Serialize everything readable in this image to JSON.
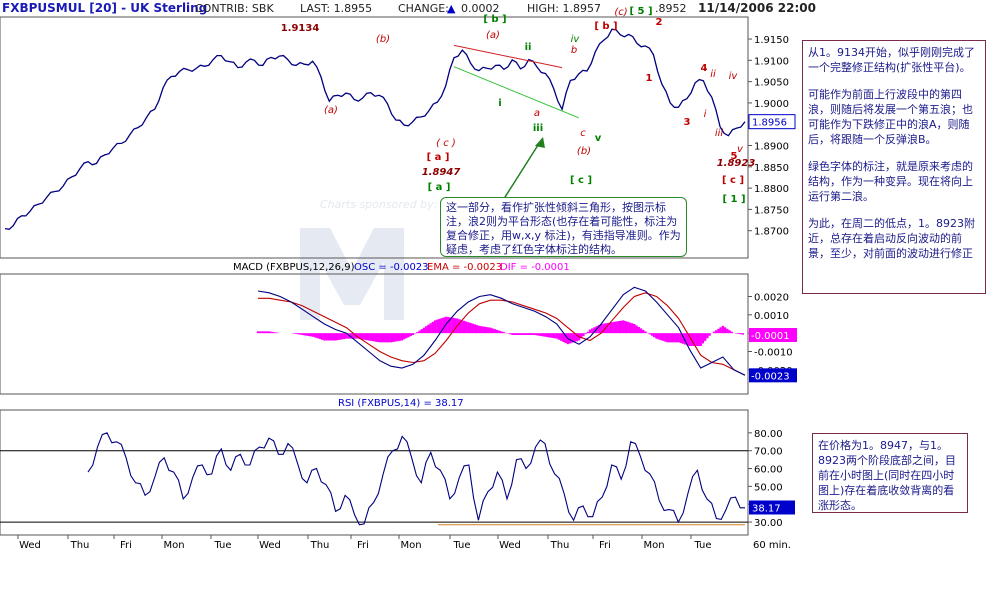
{
  "header": {
    "symbol": "FXBPUSMUL [20] - UK Sterling",
    "contrib": "CONTRIB: SBK",
    "last": "LAST: 1.8955",
    "change_label": "CHANGE:",
    "change_value": "0.0002",
    "high": "HIGH: 1.8957",
    "last_price_box": ".8952",
    "datetime": "11/14/2006 22:00"
  },
  "panes": {
    "macd_title": "MACD (FXBPUS,12,26,9)",
    "macd_osc": "OSC = -0.0023",
    "macd_ema": "EMA = -0.0023",
    "macd_dif": "DIF = -0.0001",
    "rsi_title": "RSI (FXBPUS,14) = 38.17",
    "sponsor": "Charts sponsored by:"
  },
  "chart_data": [
    {
      "type": "line",
      "pane": "price",
      "ylim": [
        1.865,
        1.919
      ],
      "y_ticks": [
        "1.9150",
        "1.9100",
        "1.9050",
        "1.9000",
        "1.8950",
        "1.8900",
        "1.8850",
        "1.8800",
        "1.8750",
        "1.8700"
      ],
      "y_tick_values": [
        1.915,
        1.91,
        1.905,
        1.9,
        1.895,
        1.89,
        1.885,
        1.88,
        1.875,
        1.87
      ],
      "last_value_label": "1.8956",
      "last_value": 1.8956,
      "x_ticks": [
        "Wed",
        "Thu",
        "Fri",
        "Mon",
        "Tue",
        "Wed",
        "Thu",
        "Fri",
        "Mon",
        "Tue",
        "Wed",
        "Thu",
        "Fri",
        "Mon",
        "Tue"
      ],
      "x_unit": "60 min.",
      "series": [
        {
          "values": [
            1.8705,
            1.8712,
            1.8735,
            1.8745,
            1.8762,
            1.8778,
            1.8792,
            1.8805,
            1.8826,
            1.8845,
            1.8862,
            1.8858,
            1.8878,
            1.8894,
            1.8905,
            1.8925,
            1.8942,
            1.8965,
            1.8985,
            1.9035,
            1.9062,
            1.9074,
            1.9078,
            1.9081,
            1.9086,
            1.9101,
            1.9111,
            1.9097,
            1.9083,
            1.9096,
            1.91,
            1.9088,
            1.9107,
            1.911,
            1.9102,
            1.9088,
            1.9091,
            1.9098,
            1.9061,
            1.9004,
            1.9018,
            1.9023,
            1.9008,
            1.9011,
            1.9024,
            1.9018,
            1.8998,
            1.896,
            1.8948,
            1.8955,
            1.8967,
            1.8982,
            1.9002,
            1.904,
            1.9106,
            1.9124,
            1.9093,
            1.9076,
            1.9081,
            1.9088,
            1.9079,
            1.9101,
            1.908,
            1.9102,
            1.9084,
            1.9069,
            1.9033,
            1.8985,
            1.9053,
            1.9068,
            1.9075,
            1.912,
            1.9147,
            1.9173,
            1.916,
            1.9161,
            1.914,
            1.9134,
            1.9113,
            1.9044,
            1.9,
            1.899,
            1.901,
            1.9047,
            1.9052,
            1.9014,
            1.8944,
            1.8923,
            1.8941,
            1.8956
          ]
        }
      ],
      "annotations": [
        {
          "text": "1.9134",
          "color": "#8b0000"
        },
        {
          "text": "(b)",
          "color": "#c00000"
        },
        {
          "text": "(a)",
          "color": "#c00000"
        },
        {
          "text": "( c )",
          "color": "#c00000"
        },
        {
          "text": "[ a ]",
          "color": "#c00000"
        },
        {
          "text": "1.8947",
          "color": "#8b0000"
        },
        {
          "text": "[ a ]",
          "color": "#008000"
        },
        {
          "text": "[ b ]",
          "color": "#008000"
        },
        {
          "text": "(a)",
          "color": "#c00000"
        },
        {
          "text": "ii",
          "color": "#008000"
        },
        {
          "text": "iv",
          "color": "#008000"
        },
        {
          "text": "i",
          "color": "#008000"
        },
        {
          "text": "iii",
          "color": "#008000"
        },
        {
          "text": "v",
          "color": "#008000"
        },
        {
          "text": "a",
          "color": "#c00000"
        },
        {
          "text": "b",
          "color": "#c00000"
        },
        {
          "text": "c",
          "color": "#c00000"
        },
        {
          "text": "(b)",
          "color": "#c00000"
        },
        {
          "text": "[ c ]",
          "color": "#008000"
        },
        {
          "text": "(c)",
          "color": "#c00000"
        },
        {
          "text": "[ b ]",
          "color": "#c00000"
        },
        {
          "text": "[ 5 ]",
          "color": "#008000"
        },
        {
          "text": "2",
          "color": "#c00000"
        },
        {
          "text": "1",
          "color": "#c00000"
        },
        {
          "text": "3",
          "color": "#c00000"
        },
        {
          "text": "4",
          "color": "#c00000"
        },
        {
          "text": "i",
          "color": "#c00000"
        },
        {
          "text": "ii",
          "color": "#c00000"
        },
        {
          "text": "iii",
          "color": "#c00000"
        },
        {
          "text": "iv",
          "color": "#c00000"
        },
        {
          "text": "v",
          "color": "#c00000"
        },
        {
          "text": "5",
          "color": "#c00000"
        },
        {
          "text": "1.8923",
          "color": "#8b0000"
        },
        {
          "text": "[ c ]",
          "color": "#c00000"
        },
        {
          "text": "[ 1 ]",
          "color": "#008000"
        }
      ]
    },
    {
      "type": "line",
      "pane": "macd",
      "ylim": [
        -0.0031,
        0.0029
      ],
      "y_ticks": [
        "0.0020",
        "0.0010",
        "0.0000",
        "-0.0010",
        "-0.0020"
      ],
      "y_tick_values": [
        0.002,
        0.001,
        0.0,
        -0.001,
        -0.002
      ],
      "last_labels": [
        "-0.0001",
        "-0.0023"
      ],
      "series": [
        {
          "name": "MACD",
          "values": [
            0.0023,
            0.0022,
            0.002,
            0.0017,
            0.0013,
            0.0009,
            0.0005,
            0.0002,
            0.0,
            -0.0005,
            -0.001,
            -0.0015,
            -0.0018,
            -0.0019,
            -0.0017,
            -0.0012,
            -0.0004,
            0.0005,
            0.0012,
            0.0017,
            0.002,
            0.0021,
            0.0019,
            0.0016,
            0.0014,
            0.0012,
            0.0009,
            0.0005,
            -0.0003,
            -0.0006,
            -0.0002,
            0.0005,
            0.0013,
            0.0021,
            0.0025,
            0.0023,
            0.0017,
            0.001,
            0.0003,
            -0.0009,
            -0.0019,
            -0.0016,
            -0.0013,
            -0.002,
            -0.0023
          ]
        },
        {
          "name": "EMA",
          "values": [
            0.0019,
            0.0019,
            0.0018,
            0.0017,
            0.0015,
            0.0012,
            0.0009,
            0.0006,
            0.0003,
            -0.0002,
            -0.0006,
            -0.001,
            -0.0013,
            -0.0015,
            -0.0016,
            -0.0015,
            -0.0011,
            -0.0004,
            0.0004,
            0.0011,
            0.0016,
            0.0018,
            0.0018,
            0.0017,
            0.0015,
            0.0013,
            0.0011,
            0.0008,
            0.0003,
            -0.0002,
            -0.0004,
            0.0,
            0.0007,
            0.0014,
            0.002,
            0.0022,
            0.002,
            0.0015,
            0.0008,
            -0.0002,
            -0.0012,
            -0.0016,
            -0.0017,
            -0.002,
            -0.0023
          ]
        },
        {
          "name": "DIF",
          "values": [
            0.0001,
            0.0001,
            0.0,
            0.0,
            -0.0001,
            -0.0002,
            -0.0004,
            -0.0004,
            -0.0003,
            -0.0003,
            -0.0004,
            -0.0005,
            -0.0005,
            -0.0004,
            -0.0001,
            0.0003,
            0.0007,
            0.0009,
            0.0008,
            0.0006,
            0.0004,
            0.0003,
            0.0001,
            -0.0001,
            -0.0001,
            -0.0001,
            -0.0002,
            -0.0003,
            -0.0006,
            -0.0004,
            0.0002,
            0.0005,
            0.0006,
            0.0007,
            0.0005,
            0.0001,
            -0.0003,
            -0.0005,
            -0.0005,
            -0.0007,
            -0.0007,
            0.0,
            0.0004,
            0.0,
            -0.0001
          ]
        }
      ]
    },
    {
      "type": "line",
      "pane": "rsi",
      "ylim": [
        25,
        90
      ],
      "y_ticks": [
        "80.00",
        "70.00",
        "60.00",
        "50.00",
        "40.00",
        "30.00"
      ],
      "y_tick_values": [
        80,
        70,
        60,
        50,
        40,
        30
      ],
      "last_value_label": "38.17",
      "last_value": 38.17,
      "series": [
        {
          "name": "RSI",
          "values": [
            58,
            72,
            80,
            75,
            66,
            52,
            45,
            55,
            66,
            58,
            43,
            55,
            62,
            57,
            71,
            59,
            68,
            62,
            72,
            77,
            68,
            74,
            63,
            52,
            60,
            51,
            36,
            45,
            34,
            29,
            41,
            57,
            70,
            78,
            66,
            52,
            69,
            59,
            43,
            55,
            62,
            31,
            47,
            58,
            43,
            65,
            60,
            72,
            74,
            57,
            46,
            31,
            39,
            33,
            44,
            62,
            54,
            75,
            67,
            57,
            42,
            37,
            30,
            46,
            59,
            43,
            32,
            37,
            44,
            38
          ]
        }
      ]
    }
  ],
  "notes": {
    "note1": {
      "p1": "从1。9134开始，似乎刚刚完成了一个完整修正结构(扩张性平台)。",
      "p2": "可能作为前面上行波段中的第四浪，则随后将发展一个第五浪；也可能作为下跌修正中的浪A，则随后，将跟随一个反弹浪B。",
      "p3": "绿色字体的标注，就是原来考虑的结构，作为一种变异。现在将向上运行第二浪。",
      "p4": "为此，在周二的低点，1。8923附近，总存在着启动反向波动的前景，至少，对前面的波动进行修正"
    },
    "note2": "在价格为1。8947，与1。8923两个阶段底部之间，目前在小时图上(同时在四小时图上)存在着底收敛背离的看涨形态。",
    "callout": "这一部分，看作扩张性倾斜三角形，按图示标注，浪2则为平台形态(也存在着可能性，标注为复合修正，用w,x,y 标注)，有违指导准则。作为疑虑，考虑了红色字体标注的结构。"
  },
  "colors": {
    "price_line": "#000080",
    "macd_line": "#000080",
    "ema_line": "#c00000",
    "dif_hist": "#ff00ff",
    "rsi_line": "#000080",
    "label_blue": "#0000cc",
    "label_red": "#cc0000",
    "label_magenta": "#ff00ff"
  }
}
